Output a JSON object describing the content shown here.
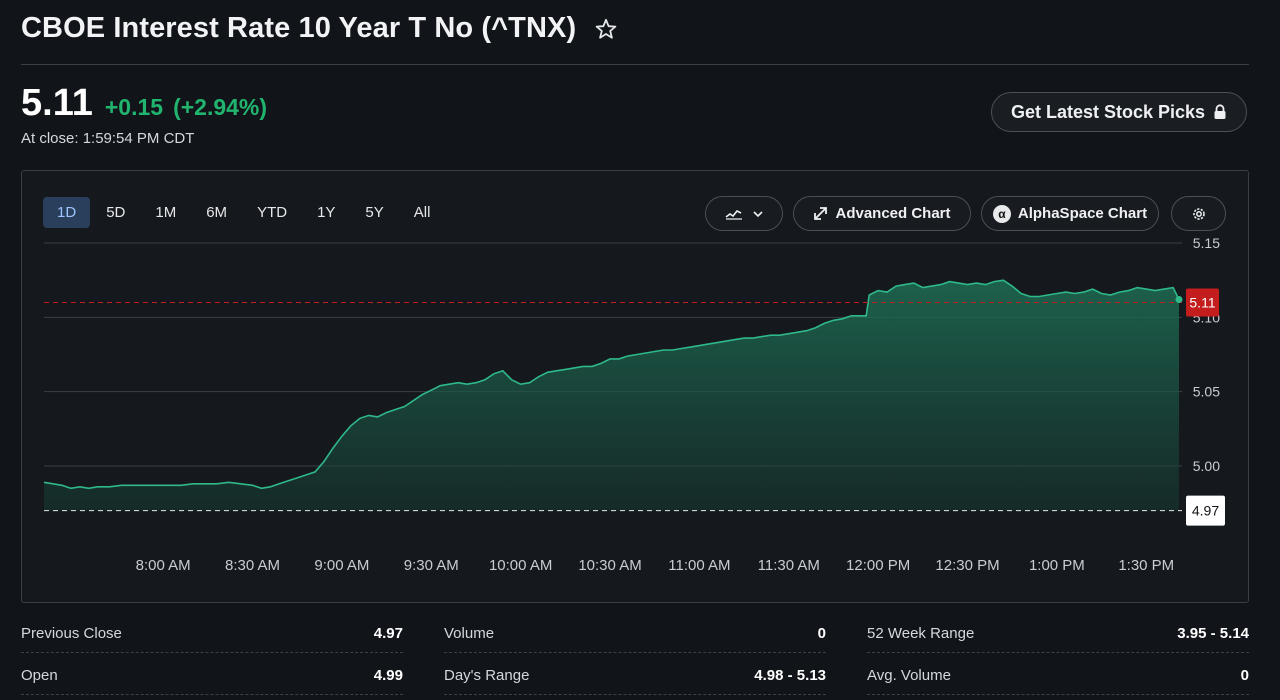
{
  "header": {
    "title": "CBOE Interest Rate 10 Year T No (^TNX)"
  },
  "quote": {
    "price": "5.11",
    "change": "+0.15",
    "change_pct": "(+2.94%)",
    "close_time": "At close: 1:59:54 PM CDT"
  },
  "picks_button": {
    "label": "Get Latest Stock Picks"
  },
  "toolbar": {
    "ranges": [
      "1D",
      "5D",
      "1M",
      "6M",
      "YTD",
      "1Y",
      "5Y",
      "All"
    ],
    "active_range": "1D",
    "advanced_chart_label": "Advanced Chart",
    "alphaspace_label": "AlphaSpace Chart",
    "alpha_symbol": "α"
  },
  "colors": {
    "up": "#21b46e",
    "line": "#2fb889",
    "current_price_marker": "#c41d1d",
    "active_tab_bg": "#2a3f5c"
  },
  "chart_data": {
    "type": "area",
    "ylim": [
      4.965,
      5.15
    ],
    "y_ticks": [
      "5.15",
      "5.10",
      "5.05",
      "5.00"
    ],
    "x_ticks": [
      "8:00 AM",
      "8:30 AM",
      "9:00 AM",
      "9:30 AM",
      "10:00 AM",
      "10:30 AM",
      "11:00 AM",
      "11:30 AM",
      "12:00 PM",
      "12:30 PM",
      "1:00 PM",
      "1:30 PM"
    ],
    "x_tick_minutes": [
      480,
      510,
      540,
      570,
      600,
      630,
      660,
      690,
      720,
      750,
      780,
      810
    ],
    "xlim_minutes": [
      440,
      822
    ],
    "last_price": 5.11,
    "last_price_label": "5.11",
    "previous_close": 4.97,
    "previous_close_label": "4.97",
    "series": [
      {
        "x": [
          440,
          443,
          446,
          449,
          452,
          455,
          458,
          462,
          466,
          470,
          474,
          478,
          482,
          486,
          490,
          494,
          498,
          502,
          506,
          510,
          513,
          516,
          519,
          522,
          525,
          528,
          531,
          534,
          537,
          540,
          543,
          546,
          549,
          552,
          555,
          558,
          561,
          564,
          567,
          570,
          573,
          576,
          579,
          582,
          585,
          588,
          591,
          594,
          597,
          600,
          603,
          606,
          609,
          612,
          615,
          618,
          621,
          624,
          627,
          630,
          633,
          636,
          639,
          642,
          645,
          648,
          651,
          654,
          657,
          660,
          663,
          666,
          669,
          672,
          675,
          678,
          681,
          684,
          687,
          690,
          693,
          696,
          699,
          702,
          705,
          708,
          711,
          714,
          716,
          717,
          720,
          723,
          726,
          729,
          732,
          735,
          738,
          741,
          744,
          747,
          750,
          753,
          756,
          759,
          762,
          765,
          768,
          771,
          774,
          777,
          780,
          783,
          786,
          789,
          792,
          795,
          798,
          801,
          804,
          807,
          810,
          813,
          816,
          819,
          821
        ],
        "y": [
          4.989,
          4.988,
          4.987,
          4.985,
          4.986,
          4.985,
          4.986,
          4.986,
          4.987,
          4.987,
          4.987,
          4.987,
          4.987,
          4.987,
          4.988,
          4.988,
          4.988,
          4.989,
          4.988,
          4.987,
          4.985,
          4.986,
          4.988,
          4.99,
          4.992,
          4.994,
          4.996,
          5.003,
          5.012,
          5.02,
          5.027,
          5.032,
          5.034,
          5.033,
          5.036,
          5.038,
          5.04,
          5.044,
          5.048,
          5.051,
          5.054,
          5.055,
          5.056,
          5.055,
          5.056,
          5.058,
          5.062,
          5.064,
          5.058,
          5.055,
          5.056,
          5.06,
          5.063,
          5.064,
          5.065,
          5.066,
          5.067,
          5.067,
          5.069,
          5.072,
          5.072,
          5.074,
          5.075,
          5.076,
          5.077,
          5.078,
          5.078,
          5.079,
          5.08,
          5.081,
          5.082,
          5.083,
          5.084,
          5.085,
          5.086,
          5.086,
          5.087,
          5.088,
          5.088,
          5.089,
          5.09,
          5.091,
          5.093,
          5.096,
          5.098,
          5.099,
          5.101,
          5.101,
          5.101,
          5.115,
          5.118,
          5.117,
          5.121,
          5.122,
          5.123,
          5.12,
          5.121,
          5.122,
          5.124,
          5.123,
          5.122,
          5.123,
          5.122,
          5.124,
          5.125,
          5.121,
          5.116,
          5.114,
          5.114,
          5.115,
          5.116,
          5.117,
          5.116,
          5.117,
          5.119,
          5.116,
          5.115,
          5.117,
          5.118,
          5.12,
          5.119,
          5.118,
          5.119,
          5.12,
          5.112
        ]
      }
    ]
  },
  "stats": {
    "col1": [
      {
        "label": "Previous Close",
        "value": "4.97"
      },
      {
        "label": "Open",
        "value": "4.99"
      }
    ],
    "col2": [
      {
        "label": "Volume",
        "value": "0"
      },
      {
        "label": "Day's Range",
        "value": "4.98 - 5.13"
      }
    ],
    "col3": [
      {
        "label": "52 Week Range",
        "value": "3.95 - 5.14"
      },
      {
        "label": "Avg. Volume",
        "value": "0"
      }
    ]
  }
}
